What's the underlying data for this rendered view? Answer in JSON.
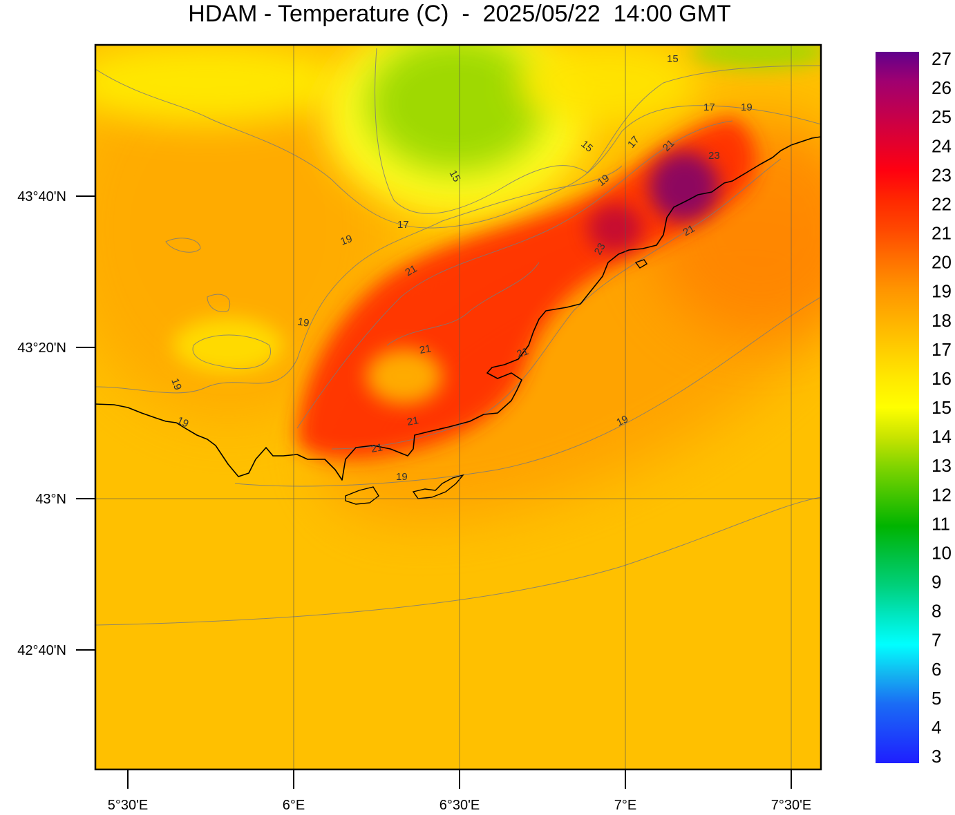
{
  "title": "HDAM - Temperature (C)  -  2025/05/22  14:00 GMT",
  "map": {
    "lat_labels": [
      "43°40'N",
      "43°20'N",
      "43°N",
      "42°40'N"
    ],
    "lon_labels": [
      "5°30'E",
      "6°E",
      "6°30'E",
      "7°E",
      "7°30'E"
    ],
    "contour_labels": [
      "15",
      "17",
      "19",
      "21",
      "23",
      "15",
      "17",
      "19",
      "15",
      "17",
      "19",
      "21",
      "19",
      "21",
      "21",
      "21",
      "21",
      "19",
      "19",
      "19",
      "21",
      "19",
      "23"
    ]
  },
  "colorbar": {
    "unit": "C",
    "min": 3,
    "max": 27,
    "labels": [
      "27",
      "26",
      "25",
      "24",
      "23",
      "22",
      "21",
      "20",
      "19",
      "18",
      "17",
      "16",
      "15",
      "14",
      "13",
      "12",
      "11",
      "10",
      "9",
      "8",
      "7",
      "6",
      "5",
      "4",
      "3"
    ],
    "stops": [
      {
        "v": 3,
        "color": "#1e1eff"
      },
      {
        "v": 5,
        "color": "#1a6cf5"
      },
      {
        "v": 6,
        "color": "#14b4f0"
      },
      {
        "v": 7,
        "color": "#00ffff"
      },
      {
        "v": 8,
        "color": "#00e6c0"
      },
      {
        "v": 9,
        "color": "#00d07a"
      },
      {
        "v": 10,
        "color": "#00c040"
      },
      {
        "v": 11,
        "color": "#00b400"
      },
      {
        "v": 12,
        "color": "#40c400"
      },
      {
        "v": 13,
        "color": "#80d400"
      },
      {
        "v": 14,
        "color": "#c8e400"
      },
      {
        "v": 15,
        "color": "#ffff00"
      },
      {
        "v": 16,
        "color": "#ffe800"
      },
      {
        "v": 17,
        "color": "#ffcc00"
      },
      {
        "v": 18,
        "color": "#ffb000"
      },
      {
        "v": 19,
        "color": "#ff9400"
      },
      {
        "v": 20,
        "color": "#ff7000"
      },
      {
        "v": 21,
        "color": "#ff4800"
      },
      {
        "v": 22,
        "color": "#ff2800"
      },
      {
        "v": 23,
        "color": "#ff0010"
      },
      {
        "v": 24,
        "color": "#e00030"
      },
      {
        "v": 25,
        "color": "#c00050"
      },
      {
        "v": 26,
        "color": "#a00070"
      },
      {
        "v": 27,
        "color": "#60008c"
      }
    ]
  }
}
